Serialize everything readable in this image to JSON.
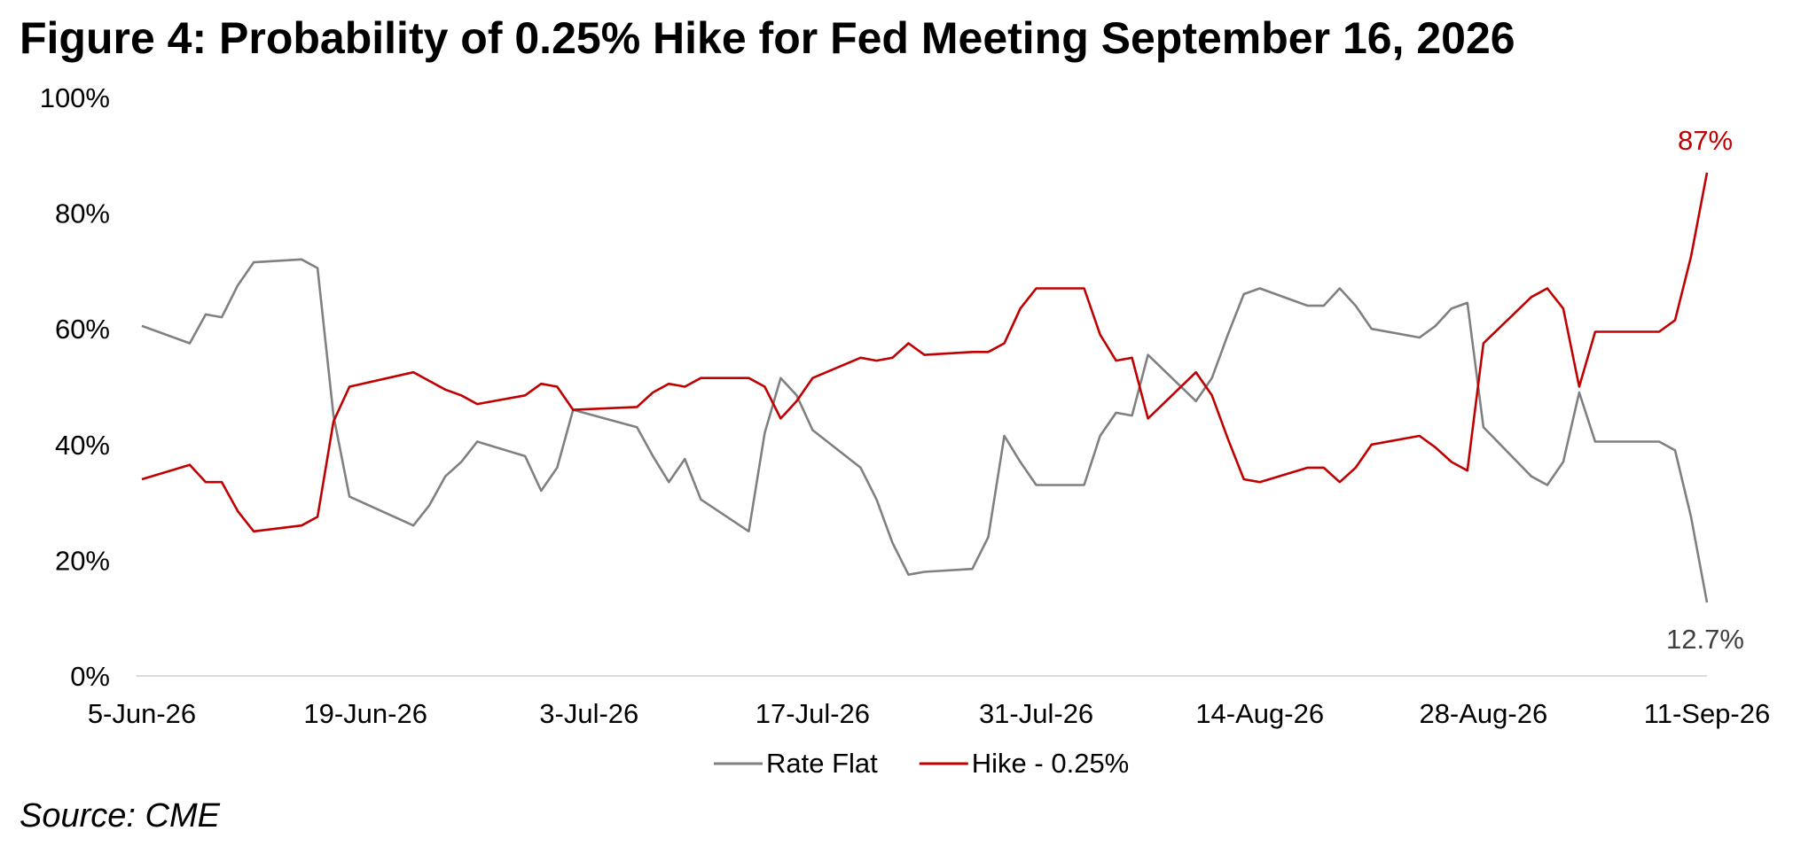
{
  "title": "Figure 4: Probability of 0.25% Hike for Fed Meeting September 16, 2026",
  "source": "Source: CME",
  "colors": {
    "rate_flat": "#808080",
    "hike": "#c00000",
    "axis": "#d9d9d9"
  },
  "chart_data": {
    "type": "line",
    "title": "Figure 4: Probability of 0.25% Hike for Fed Meeting September 16, 2026",
    "xlabel": "",
    "ylabel": "",
    "ylim": [
      0,
      100
    ],
    "y_ticks": [
      "0%",
      "20%",
      "40%",
      "60%",
      "80%",
      "100%"
    ],
    "x_ticks": [
      "5-Jun-26",
      "19-Jun-26",
      "3-Jul-26",
      "17-Jul-26",
      "31-Jul-26",
      "14-Aug-26",
      "28-Aug-26",
      "11-Sep-26"
    ],
    "x_range": [
      "2026-06-05",
      "2026-09-11"
    ],
    "grid": false,
    "legend": "bottom",
    "series": [
      {
        "name": "Rate Flat",
        "points": [
          [
            "2026-06-05",
            60.5
          ],
          [
            "2026-06-08",
            57.5
          ],
          [
            "2026-06-09",
            62.5
          ],
          [
            "2026-06-10",
            62.0
          ],
          [
            "2026-06-11",
            67.5
          ],
          [
            "2026-06-12",
            71.5
          ],
          [
            "2026-06-15",
            72.0
          ],
          [
            "2026-06-16",
            70.5
          ],
          [
            "2026-06-17",
            45.0
          ],
          [
            "2026-06-18",
            31.0
          ],
          [
            "2026-06-22",
            26.0
          ],
          [
            "2026-06-23",
            29.5
          ],
          [
            "2026-06-24",
            34.5
          ],
          [
            "2026-06-25",
            37.0
          ],
          [
            "2026-06-26",
            40.5
          ],
          [
            "2026-06-29",
            38.0
          ],
          [
            "2026-06-30",
            32.0
          ],
          [
            "2026-07-01",
            36.0
          ],
          [
            "2026-07-02",
            46.0
          ],
          [
            "2026-07-06",
            43.0
          ],
          [
            "2026-07-07",
            38.0
          ],
          [
            "2026-07-08",
            33.5
          ],
          [
            "2026-07-09",
            37.5
          ],
          [
            "2026-07-10",
            30.5
          ],
          [
            "2026-07-13",
            25.0
          ],
          [
            "2026-07-14",
            42.0
          ],
          [
            "2026-07-15",
            51.5
          ],
          [
            "2026-07-16",
            48.5
          ],
          [
            "2026-07-17",
            42.5
          ],
          [
            "2026-07-20",
            36.0
          ],
          [
            "2026-07-21",
            30.5
          ],
          [
            "2026-07-22",
            23.0
          ],
          [
            "2026-07-23",
            17.5
          ],
          [
            "2026-07-24",
            18.0
          ],
          [
            "2026-07-27",
            18.5
          ],
          [
            "2026-07-28",
            24.0
          ],
          [
            "2026-07-29",
            41.5
          ],
          [
            "2026-07-30",
            37.0
          ],
          [
            "2026-07-31",
            33.0
          ],
          [
            "2026-08-03",
            33.0
          ],
          [
            "2026-08-04",
            41.5
          ],
          [
            "2026-08-05",
            45.5
          ],
          [
            "2026-08-06",
            45.0
          ],
          [
            "2026-08-07",
            55.5
          ],
          [
            "2026-08-10",
            47.5
          ],
          [
            "2026-08-11",
            51.5
          ],
          [
            "2026-08-12",
            59.0
          ],
          [
            "2026-08-13",
            66.0
          ],
          [
            "2026-08-14",
            67.0
          ],
          [
            "2026-08-17",
            64.0
          ],
          [
            "2026-08-18",
            64.0
          ],
          [
            "2026-08-19",
            67.0
          ],
          [
            "2026-08-20",
            64.0
          ],
          [
            "2026-08-21",
            60.0
          ],
          [
            "2026-08-24",
            58.5
          ],
          [
            "2026-08-25",
            60.5
          ],
          [
            "2026-08-26",
            63.5
          ],
          [
            "2026-08-27",
            64.5
          ],
          [
            "2026-08-28",
            43.0
          ],
          [
            "2026-08-31",
            34.5
          ],
          [
            "2026-09-01",
            33.0
          ],
          [
            "2026-09-02",
            37.0
          ],
          [
            "2026-09-03",
            49.0
          ],
          [
            "2026-09-04",
            40.5
          ],
          [
            "2026-09-08",
            40.5
          ],
          [
            "2026-09-09",
            39.0
          ],
          [
            "2026-09-10",
            27.5
          ],
          [
            "2026-09-11",
            12.7
          ]
        ]
      },
      {
        "name": "Hike - 0.25%",
        "points": [
          [
            "2026-06-05",
            34.0
          ],
          [
            "2026-06-08",
            36.5
          ],
          [
            "2026-06-09",
            33.5
          ],
          [
            "2026-06-10",
            33.5
          ],
          [
            "2026-06-11",
            28.5
          ],
          [
            "2026-06-12",
            25.0
          ],
          [
            "2026-06-15",
            26.0
          ],
          [
            "2026-06-16",
            27.5
          ],
          [
            "2026-06-17",
            44.0
          ],
          [
            "2026-06-18",
            50.0
          ],
          [
            "2026-06-22",
            52.5
          ],
          [
            "2026-06-23",
            51.0
          ],
          [
            "2026-06-24",
            49.5
          ],
          [
            "2026-06-25",
            48.5
          ],
          [
            "2026-06-26",
            47.0
          ],
          [
            "2026-06-29",
            48.5
          ],
          [
            "2026-06-30",
            50.5
          ],
          [
            "2026-07-01",
            50.0
          ],
          [
            "2026-07-02",
            46.0
          ],
          [
            "2026-07-06",
            46.5
          ],
          [
            "2026-07-07",
            49.0
          ],
          [
            "2026-07-08",
            50.5
          ],
          [
            "2026-07-09",
            50.0
          ],
          [
            "2026-07-10",
            51.5
          ],
          [
            "2026-07-13",
            51.5
          ],
          [
            "2026-07-14",
            50.0
          ],
          [
            "2026-07-15",
            44.5
          ],
          [
            "2026-07-16",
            47.5
          ],
          [
            "2026-07-17",
            51.5
          ],
          [
            "2026-07-20",
            55.0
          ],
          [
            "2026-07-21",
            54.5
          ],
          [
            "2026-07-22",
            55.0
          ],
          [
            "2026-07-23",
            57.5
          ],
          [
            "2026-07-24",
            55.5
          ],
          [
            "2026-07-27",
            56.0
          ],
          [
            "2026-07-28",
            56.0
          ],
          [
            "2026-07-29",
            57.5
          ],
          [
            "2026-07-30",
            63.5
          ],
          [
            "2026-07-31",
            67.0
          ],
          [
            "2026-08-03",
            67.0
          ],
          [
            "2026-08-04",
            59.0
          ],
          [
            "2026-08-05",
            54.5
          ],
          [
            "2026-08-06",
            55.0
          ],
          [
            "2026-08-07",
            44.5
          ],
          [
            "2026-08-10",
            52.5
          ],
          [
            "2026-08-11",
            48.5
          ],
          [
            "2026-08-12",
            41.0
          ],
          [
            "2026-08-13",
            34.0
          ],
          [
            "2026-08-14",
            33.5
          ],
          [
            "2026-08-17",
            36.0
          ],
          [
            "2026-08-18",
            36.0
          ],
          [
            "2026-08-19",
            33.5
          ],
          [
            "2026-08-20",
            36.0
          ],
          [
            "2026-08-21",
            40.0
          ],
          [
            "2026-08-24",
            41.5
          ],
          [
            "2026-08-25",
            39.5
          ],
          [
            "2026-08-26",
            37.0
          ],
          [
            "2026-08-27",
            35.5
          ],
          [
            "2026-08-28",
            57.5
          ],
          [
            "2026-08-31",
            65.5
          ],
          [
            "2026-09-01",
            67.0
          ],
          [
            "2026-09-02",
            63.5
          ],
          [
            "2026-09-03",
            50.0
          ],
          [
            "2026-09-04",
            59.5
          ],
          [
            "2026-09-08",
            59.5
          ],
          [
            "2026-09-09",
            61.5
          ],
          [
            "2026-09-10",
            72.5
          ],
          [
            "2026-09-11",
            87.0
          ]
        ]
      }
    ],
    "annotations": [
      {
        "text": "87%",
        "series": "Hike - 0.25%",
        "x": "2026-09-11",
        "y": 87.0
      },
      {
        "text": "12.7%",
        "series": "Rate Flat",
        "x": "2026-09-11",
        "y": 12.7
      }
    ]
  }
}
